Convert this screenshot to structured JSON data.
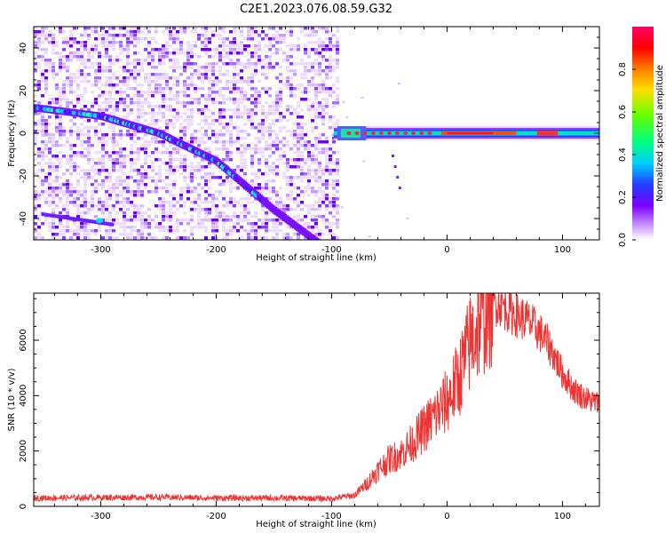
{
  "figure_title": "C2E1.2023.076.08.59.G32",
  "chart_data": [
    {
      "type": "heatmap",
      "xlabel": "Height of straight line (km)",
      "ylabel": "Frequency (Hz)",
      "xlim": [
        -358,
        132
      ],
      "ylim": [
        -50,
        50
      ],
      "xticks": [
        -300,
        -200,
        -100,
        0,
        100
      ],
      "yticks": [
        -40,
        -20,
        0,
        20,
        40
      ],
      "colorbar": {
        "label": "Normalized spectral amplitude",
        "range": [
          0,
          1
        ],
        "ticks": [
          0.0,
          0.2,
          0.4,
          0.6,
          0.8
        ],
        "colormap": "rainbow-white"
      },
      "features": [
        {
          "kind": "broadband-noise",
          "x_range": [
            -358,
            -96
          ],
          "freq_range": [
            -50,
            50
          ]
        },
        {
          "kind": "doppler-track",
          "x": [
            -358,
            -300,
            -250,
            -200,
            -150,
            -110
          ],
          "freq": [
            12,
            8,
            0,
            -13,
            -36,
            -52
          ]
        },
        {
          "kind": "carrier-line",
          "x_range": [
            -98,
            132
          ],
          "freq": 0
        }
      ]
    },
    {
      "type": "line",
      "xlabel": "Height of straight line (km)",
      "ylabel": "SNR (10 * v/v)",
      "xlim": [
        -358,
        132
      ],
      "ylim": [
        0,
        7700
      ],
      "xticks": [
        -300,
        -200,
        -100,
        0,
        100
      ],
      "yticks": [
        0,
        2000,
        4000,
        6000
      ],
      "color": "#ee3333",
      "series": [
        {
          "x": [
            -358,
            -300,
            -250,
            -200,
            -150,
            -100,
            -80,
            -70,
            -60,
            -50,
            -40,
            -30,
            -20,
            -10,
            0,
            10,
            20,
            30,
            40,
            45,
            50,
            60,
            70,
            80,
            90,
            100,
            110,
            120,
            132
          ],
          "values": [
            300,
            320,
            330,
            300,
            300,
            280,
            400,
            800,
            1300,
            1700,
            1900,
            2300,
            2800,
            3300,
            3800,
            4600,
            5900,
            6800,
            7300,
            7400,
            7200,
            6900,
            6700,
            6300,
            5700,
            4800,
            4200,
            3900,
            3700
          ]
        }
      ]
    }
  ]
}
